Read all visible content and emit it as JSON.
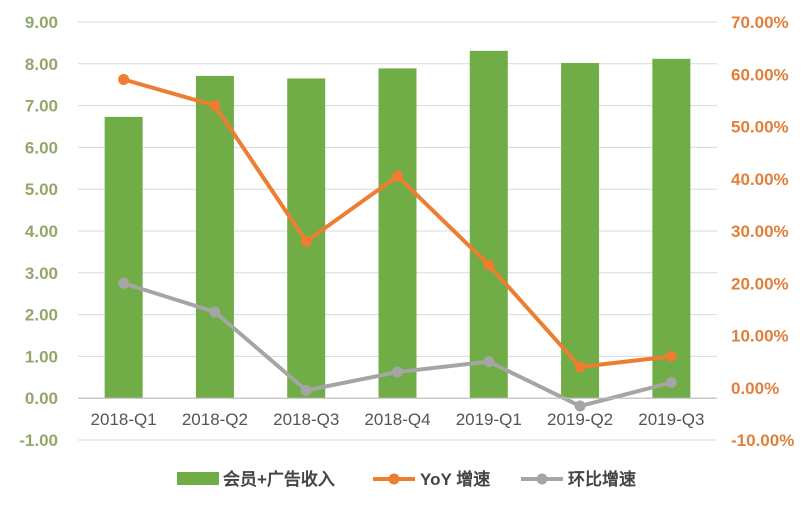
{
  "chart_data": {
    "type": "bar",
    "categories": [
      "2018-Q1",
      "2018-Q2",
      "2018-Q3",
      "2018-Q4",
      "2019-Q1",
      "2019-Q2",
      "2019-Q3"
    ],
    "series": [
      {
        "name": "会员+广告收入",
        "type": "bar",
        "axis": "left",
        "color": "#70ad47",
        "values": [
          6.73,
          7.71,
          7.65,
          7.89,
          8.31,
          8.02,
          8.12
        ]
      },
      {
        "name": "YoY 增速",
        "type": "line",
        "axis": "right",
        "color": "#ed7d31",
        "values": [
          0.59,
          0.54,
          0.28,
          0.405,
          0.235,
          0.04,
          0.06
        ]
      },
      {
        "name": "环比增速",
        "type": "line",
        "axis": "right",
        "color": "#a5a5a5",
        "values": [
          0.2,
          0.145,
          -0.005,
          0.03,
          0.05,
          -0.035,
          0.01
        ]
      }
    ],
    "left_axis": {
      "ylim": [
        -1,
        9
      ],
      "ticks": [
        "-1.00",
        "0.00",
        "1.00",
        "2.00",
        "3.00",
        "4.00",
        "5.00",
        "6.00",
        "7.00",
        "8.00",
        "9.00"
      ]
    },
    "right_axis": {
      "ylim": [
        -0.1,
        0.7
      ],
      "ticks": [
        "-10.00%",
        "0.00%",
        "10.00%",
        "20.00%",
        "30.00%",
        "40.00%",
        "50.00%",
        "60.00%",
        "70.00%"
      ]
    },
    "title": "",
    "xlabel": "",
    "ylabel": "",
    "grid": true,
    "legend_position": "bottom",
    "colors": {
      "grid": "#d9d9d9",
      "left_tick": "#92a86a",
      "right_tick": "#e0803a",
      "x_tick": "#555555",
      "legend_text": "#444444"
    }
  }
}
